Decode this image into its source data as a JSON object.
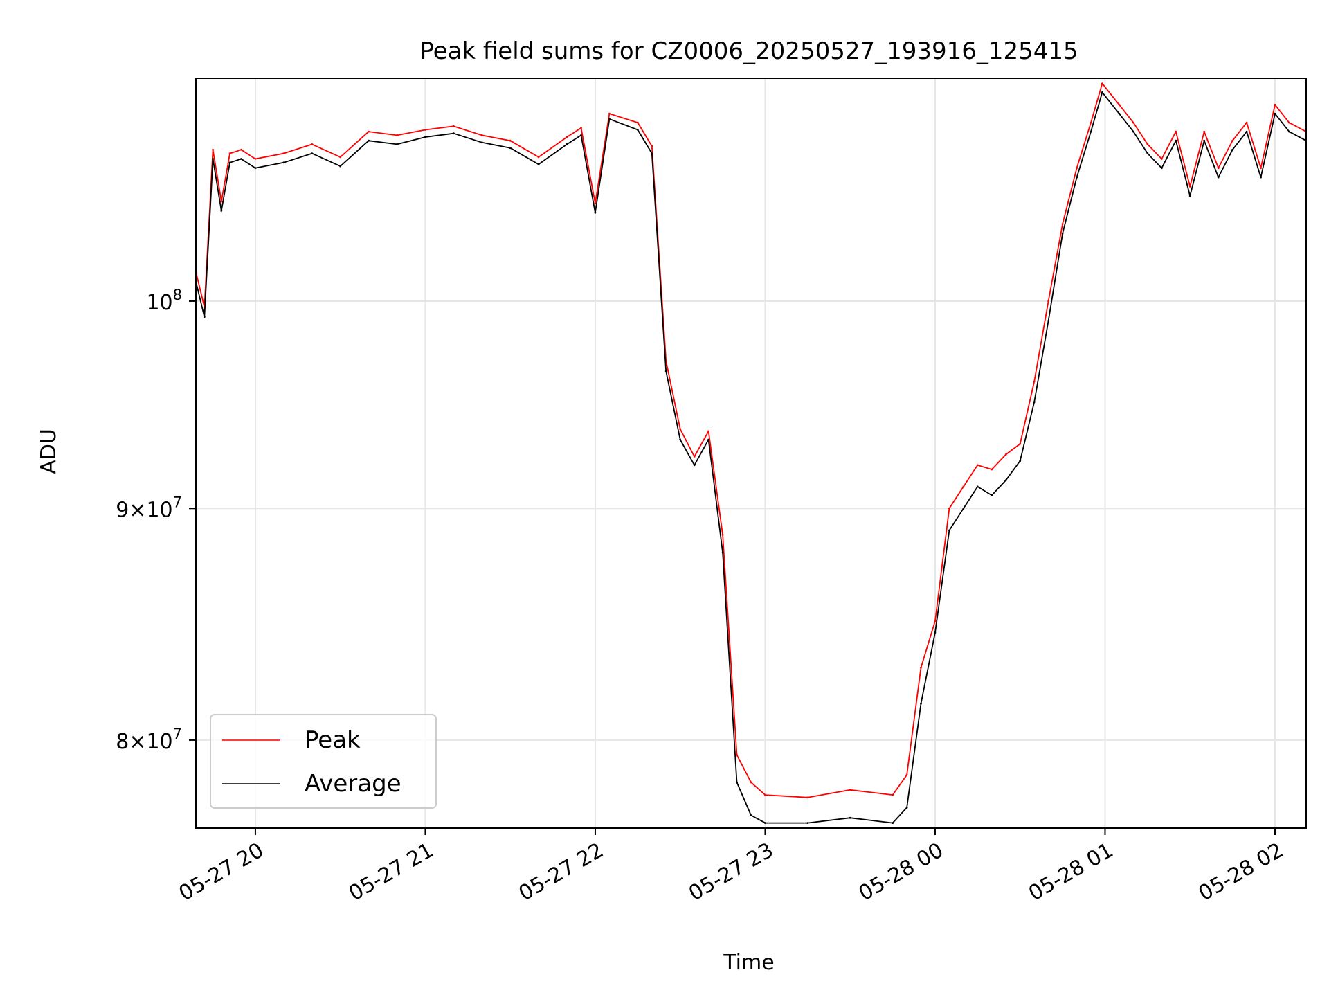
{
  "chart_data": {
    "type": "line",
    "title": "Peak field sums for CZ0006_20250527_193916_125415",
    "xlabel": "Time",
    "ylabel": "ADU",
    "y_scale": "log",
    "x_range": [
      "05-27 19:39",
      "05-28 02:11"
    ],
    "ylim": [
      76500000,
      112000000
    ],
    "grid": true,
    "legend_position": "lower-left",
    "x_ticks": [
      "05-27 20",
      "05-27 21",
      "05-27 22",
      "05-27 23",
      "05-28 00",
      "05-28 01",
      "05-28 02"
    ],
    "x_tick_times": [
      "05-27 20:00",
      "05-27 21:00",
      "05-27 22:00",
      "05-27 23:00",
      "05-28 00:00",
      "05-28 01:00",
      "05-28 02:00"
    ],
    "y_ticks": [
      {
        "value": 100000000,
        "mantissa": "",
        "exp": "8"
      },
      {
        "value": 90000000,
        "mantissa": "9",
        "exp": "7"
      },
      {
        "value": 80000000,
        "mantissa": "8",
        "exp": "7"
      }
    ],
    "series": [
      {
        "name": "Peak",
        "color": "#ff0000",
        "x": [
          "05-27 19:39",
          "05-27 19:42",
          "05-27 19:45",
          "05-27 19:48",
          "05-27 19:51",
          "05-27 19:55",
          "05-27 20:00",
          "05-27 20:10",
          "05-27 20:20",
          "05-27 20:30",
          "05-27 20:40",
          "05-27 20:50",
          "05-27 21:00",
          "05-27 21:10",
          "05-27 21:20",
          "05-27 21:30",
          "05-27 21:40",
          "05-27 21:50",
          "05-27 21:55",
          "05-27 22:00",
          "05-27 22:05",
          "05-27 22:15",
          "05-27 22:20",
          "05-27 22:25",
          "05-27 22:30",
          "05-27 22:35",
          "05-27 22:40",
          "05-27 22:45",
          "05-27 22:50",
          "05-27 22:55",
          "05-27 23:00",
          "05-27 23:15",
          "05-27 23:30",
          "05-27 23:45",
          "05-27 23:50",
          "05-27 23:55",
          "05-28 00:00",
          "05-28 00:05",
          "05-28 00:10",
          "05-28 00:15",
          "05-28 00:20",
          "05-28 00:25",
          "05-28 00:30",
          "05-28 00:35",
          "05-28 00:40",
          "05-28 00:45",
          "05-28 00:50",
          "05-28 00:55",
          "05-28 00:59",
          "05-28 01:05",
          "05-28 01:10",
          "05-28 01:15",
          "05-28 01:20",
          "05-28 01:25",
          "05-28 01:30",
          "05-28 01:35",
          "05-28 01:40",
          "05-28 01:45",
          "05-28 01:50",
          "05-28 01:55",
          "05-28 02:00",
          "05-28 02:05",
          "05-28 02:11"
        ],
        "y": [
          101500000,
          99700000,
          108000000,
          105200000,
          107800000,
          108000000,
          107500000,
          107800000,
          108300000,
          107600000,
          109000000,
          108800000,
          109100000,
          109300000,
          108800000,
          108500000,
          107600000,
          108700000,
          109200000,
          105100000,
          110000000,
          109500000,
          108200000,
          97000000,
          93700000,
          92400000,
          93600000,
          88800000,
          79400000,
          78300000,
          77800000,
          77700000,
          78000000,
          77800000,
          78600000,
          83000000,
          85000000,
          90000000,
          91000000,
          92000000,
          91800000,
          92500000,
          93000000,
          96000000,
          100000000,
          104000000,
          107000000,
          109500000,
          111700000,
          110500000,
          109500000,
          108300000,
          107500000,
          109000000,
          106000000,
          109000000,
          107000000,
          108500000,
          109500000,
          107000000,
          110500000,
          109500000,
          109000000
        ]
      },
      {
        "name": "Average",
        "color": "#000000",
        "x": [
          "05-27 19:39",
          "05-27 19:42",
          "05-27 19:45",
          "05-27 19:48",
          "05-27 19:51",
          "05-27 19:55",
          "05-27 20:00",
          "05-27 20:10",
          "05-27 20:20",
          "05-27 20:30",
          "05-27 20:40",
          "05-27 20:50",
          "05-27 21:00",
          "05-27 21:10",
          "05-27 21:20",
          "05-27 21:30",
          "05-27 21:40",
          "05-27 21:50",
          "05-27 21:55",
          "05-27 22:00",
          "05-27 22:05",
          "05-27 22:15",
          "05-27 22:20",
          "05-27 22:25",
          "05-27 22:30",
          "05-27 22:35",
          "05-27 22:40",
          "05-27 22:45",
          "05-27 22:50",
          "05-27 22:55",
          "05-27 23:00",
          "05-27 23:15",
          "05-27 23:30",
          "05-27 23:45",
          "05-27 23:50",
          "05-27 23:55",
          "05-28 00:00",
          "05-28 00:05",
          "05-28 00:10",
          "05-28 00:15",
          "05-28 00:20",
          "05-28 00:25",
          "05-28 00:30",
          "05-28 00:35",
          "05-28 00:40",
          "05-28 00:45",
          "05-28 00:50",
          "05-28 00:55",
          "05-28 00:59",
          "05-28 01:05",
          "05-28 01:10",
          "05-28 01:15",
          "05-28 01:20",
          "05-28 01:25",
          "05-28 01:30",
          "05-28 01:35",
          "05-28 01:40",
          "05-28 01:45",
          "05-28 01:50",
          "05-28 01:55",
          "05-28 02:00",
          "05-28 02:05",
          "05-28 02:11"
        ],
        "y": [
          101000000,
          99200000,
          107500000,
          104700000,
          107300000,
          107500000,
          107000000,
          107300000,
          107800000,
          107100000,
          108500000,
          108300000,
          108700000,
          108900000,
          108400000,
          108100000,
          107200000,
          108300000,
          108800000,
          104600000,
          109700000,
          109100000,
          107800000,
          96500000,
          93200000,
          92000000,
          93200000,
          88000000,
          78300000,
          77000000,
          76700000,
          76700000,
          76900000,
          76700000,
          77300000,
          81500000,
          84500000,
          89000000,
          90000000,
          91000000,
          90600000,
          91300000,
          92200000,
          95000000,
          99000000,
          103500000,
          106500000,
          109000000,
          111200000,
          110000000,
          109000000,
          107800000,
          107000000,
          108500000,
          105500000,
          108500000,
          106500000,
          108000000,
          109000000,
          106500000,
          110000000,
          109000000,
          108500000
        ]
      }
    ]
  }
}
